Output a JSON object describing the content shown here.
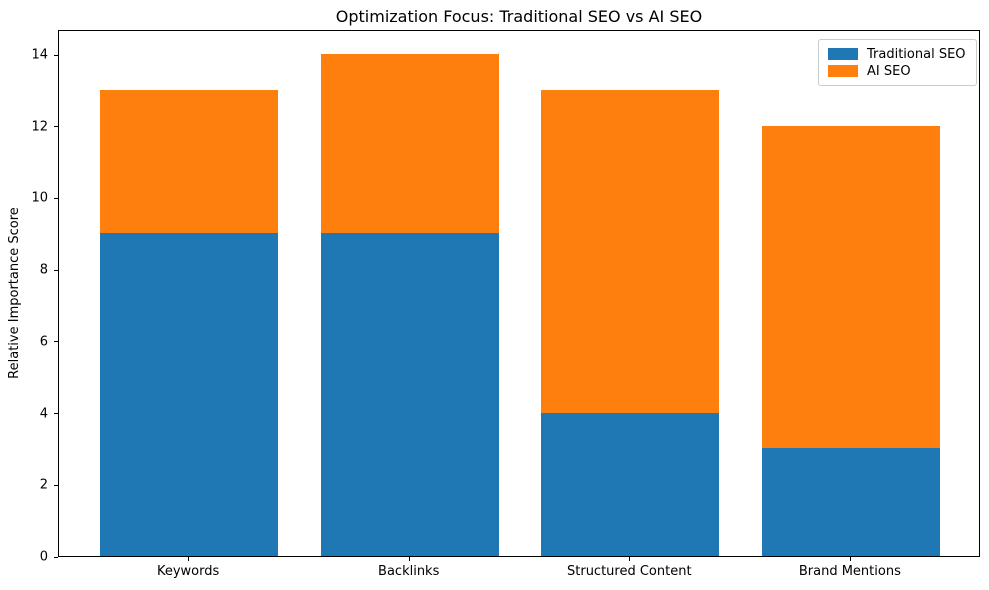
{
  "chart_data": {
    "type": "bar",
    "variant": "stacked",
    "title": "Optimization Focus: Traditional SEO vs AI SEO",
    "xlabel": "",
    "ylabel": "Relative Importance Score",
    "categories": [
      "Keywords",
      "Backlinks",
      "Structured Content",
      "Brand Mentions"
    ],
    "series": [
      {
        "name": "Traditional SEO",
        "color": "#1f77b4",
        "values": [
          9,
          9,
          4,
          3
        ]
      },
      {
        "name": "AI SEO",
        "color": "#ff7f0e",
        "values": [
          4,
          5,
          9,
          9
        ]
      }
    ],
    "stacked_totals": [
      13,
      14,
      13,
      12
    ],
    "ylim": [
      0,
      14.7
    ],
    "yticks": [
      0,
      2,
      4,
      6,
      8,
      10,
      12,
      14
    ],
    "grid": false,
    "legend_position": "upper right",
    "background_color": "#ffffff",
    "spine_color": "#000000"
  }
}
